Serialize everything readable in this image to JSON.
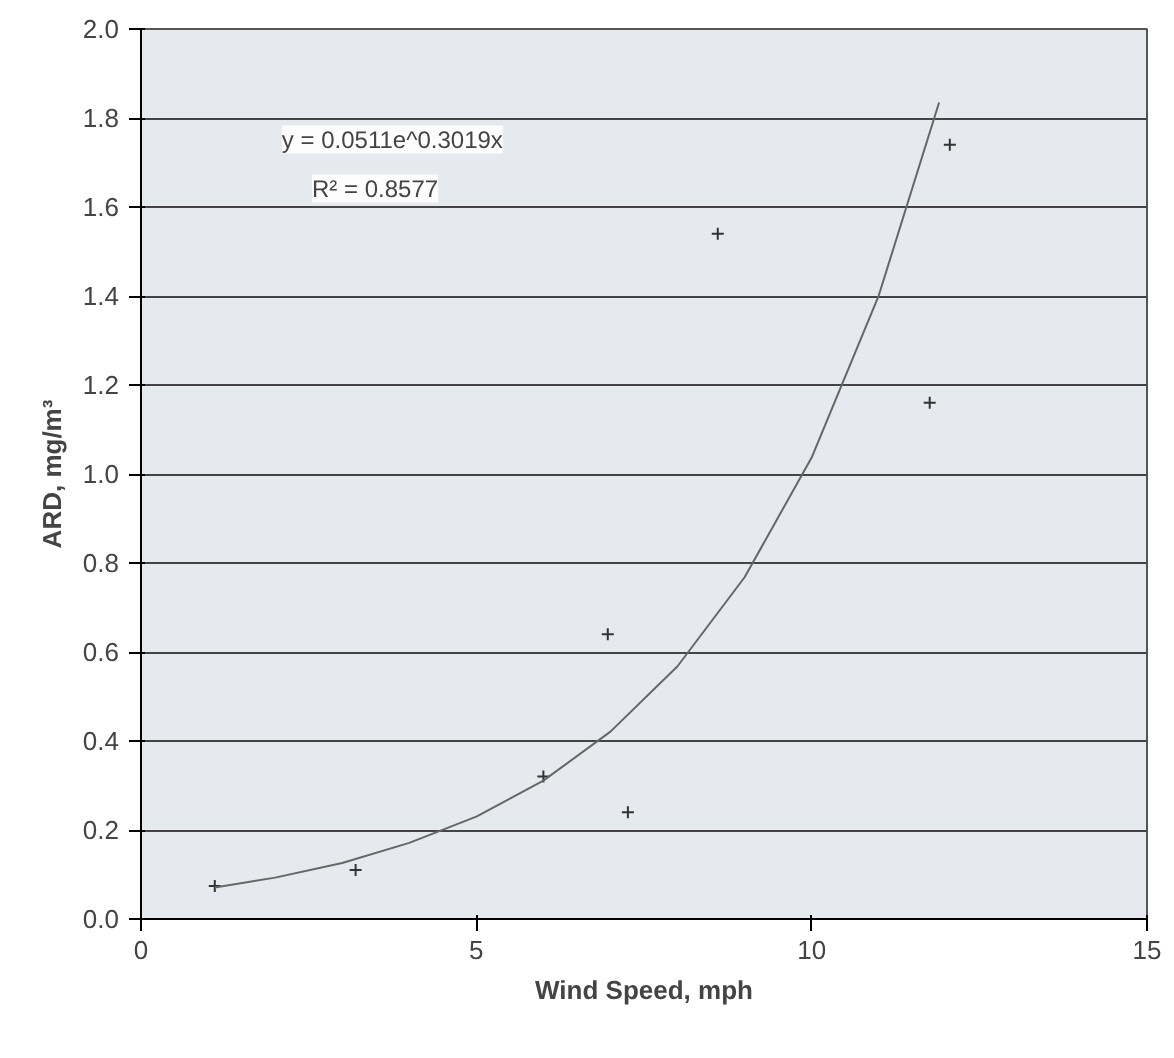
{
  "chart_data": {
    "type": "scatter",
    "xlabel": "Wind Speed, mph",
    "ylabel": "ARD, mg/m³",
    "series": [
      {
        "marker": "cross",
        "color": "#333333",
        "x": [
          1.1,
          3.2,
          6.0,
          6.96,
          7.26,
          8.6,
          11.76,
          12.06
        ],
        "values": [
          0.074,
          0.11,
          0.32,
          0.64,
          0.24,
          1.54,
          1.16,
          1.74
        ]
      },
      {
        "type": "line",
        "marker": "none",
        "color": "#666666",
        "x": [
          1.1,
          2,
          3,
          4,
          5,
          6,
          7,
          8,
          9,
          10,
          11,
          11.9
        ],
        "values": [
          0.071,
          0.093,
          0.126,
          0.171,
          0.23,
          0.311,
          0.421,
          0.568,
          0.768,
          1.037,
          1.401,
          1.835
        ]
      }
    ],
    "annotations": [
      "y = 0.0511e^0.3019x",
      "R² = 0.8577"
    ],
    "xlim": [
      0,
      15
    ],
    "xticks": [
      0,
      5,
      10,
      15
    ],
    "ylim": [
      0,
      2.0
    ],
    "yticks": [
      {
        "value": 0,
        "label": "0.0"
      },
      {
        "value": 0.2,
        "label": "0.2"
      },
      {
        "value": 0.4,
        "label": "0.4"
      },
      {
        "value": 0.6,
        "label": "0.6"
      },
      {
        "value": 0.8,
        "label": "0.8"
      },
      {
        "value": 1.0,
        "label": "1.0"
      },
      {
        "value": 1.2,
        "label": "1.2"
      },
      {
        "value": 1.4,
        "label": "1.4"
      },
      {
        "value": 1.6,
        "label": "1.6"
      },
      {
        "value": 1.8,
        "label": "1.8"
      },
      {
        "value": 2.0,
        "label": "2.0"
      }
    ],
    "grid": "y"
  }
}
